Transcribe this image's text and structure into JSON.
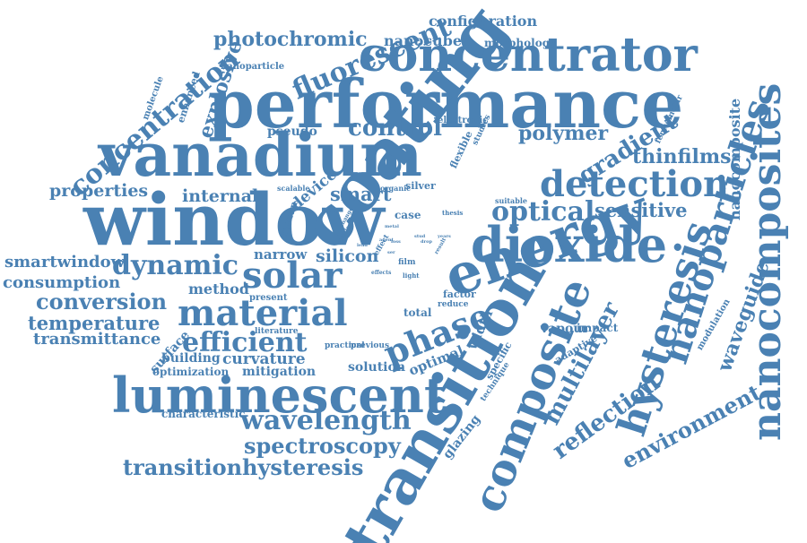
{
  "color": "#4a81b3",
  "words": [
    "performance",
    "window",
    "vanadium",
    "coating",
    "energy",
    "transition",
    "dioxide",
    "concentrator",
    "luminescent",
    "composite",
    "hysteresis",
    "nanocomposites",
    "nanoparticles",
    "solar",
    "material",
    "detection",
    "phase",
    "wavelength",
    "efficient",
    "optical",
    "dynamic",
    "conversion",
    "concentration",
    "fluorescent",
    "photochromic",
    "transitionhysteresis",
    "spectroscopy",
    "temperature",
    "transmittance",
    "smartwindow",
    "consumption",
    "properties",
    "internal",
    "control",
    "polymer",
    "gradient",
    "thinfilms",
    "sensitive",
    "reflection",
    "multilayer",
    "environment",
    "waveguide",
    "nanocomposite",
    "explosive",
    "silicon",
    "narrow",
    "smart",
    "device",
    "method",
    "building",
    "curvature",
    "mitigation",
    "optimization",
    "characteristic",
    "solution",
    "surface",
    "glazing",
    "nanocubes",
    "configuration",
    "morphology",
    "nanoparticle",
    "molecule",
    "enhanced",
    "pseudo",
    "electronic",
    "flexible",
    "studies",
    "femtomolar",
    "modulation",
    "optimal",
    "width",
    "vapour",
    "adaptive",
    "impact",
    "total",
    "practical",
    "previous",
    "literature",
    "present",
    "raman",
    "scalable",
    "organic",
    "silver",
    "case",
    "thesis",
    "suitable",
    "factor",
    "reduce",
    "specific",
    "technique",
    "film",
    "light",
    "effect",
    "effects",
    "visible",
    "change",
    "metal",
    "loss",
    "ser",
    "lead",
    "agent",
    "stud",
    "drop",
    "years",
    "result",
    "model"
  ]
}
